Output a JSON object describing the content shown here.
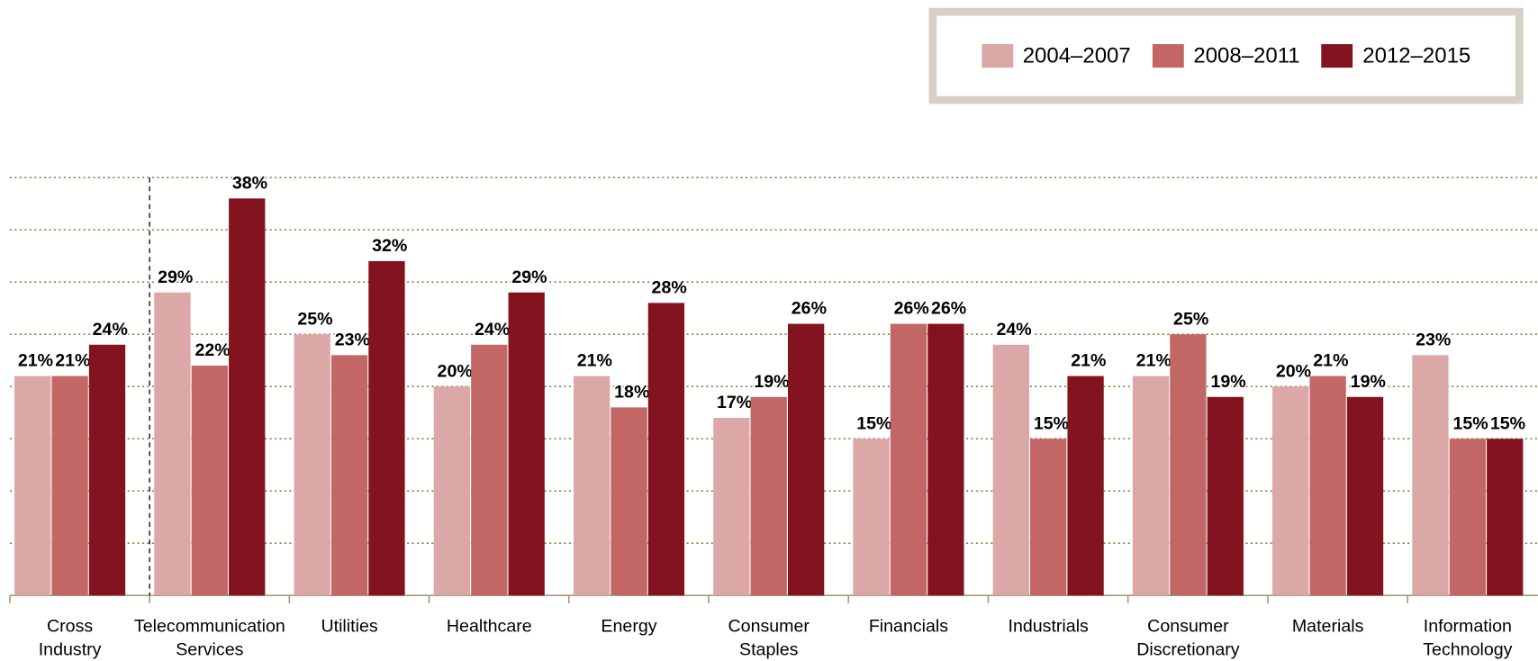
{
  "chart_data": {
    "type": "bar",
    "categories": [
      "Cross Industry",
      "Telecommunication Services",
      "Utilities",
      "Healthcare",
      "Energy",
      "Consumer Staples",
      "Financials",
      "Industrials",
      "Consumer Discretionary",
      "Materials",
      "Information Technology"
    ],
    "series": [
      {
        "name": "2004–2007",
        "color": "#dba7a7",
        "values": [
          21,
          29,
          25,
          20,
          21,
          17,
          15,
          24,
          21,
          20,
          23
        ],
        "value_labels": [
          "21%",
          "29%",
          "25%",
          "20%",
          "21%",
          "17%",
          "15%",
          "24%",
          "21%",
          "20%",
          "23%"
        ]
      },
      {
        "name": "2008–2011",
        "color": "#c26765",
        "values": [
          21,
          22,
          23,
          24,
          18,
          19,
          26,
          15,
          25,
          21,
          15
        ],
        "value_labels": [
          "21%",
          "22%",
          "23%",
          "24%",
          "18%",
          "19%",
          "26%",
          "15%",
          "25%",
          "21%",
          "15%"
        ]
      },
      {
        "name": "2012–2015",
        "color": "#83141f",
        "values": [
          24,
          38,
          32,
          29,
          28,
          26,
          26,
          21,
          19,
          19,
          15
        ],
        "value_labels": [
          "24%",
          "38%",
          "32%",
          "29%",
          "28%",
          "26%",
          "26%",
          "21%",
          "19%",
          "19%",
          "15%"
        ]
      }
    ],
    "ylim": [
      0,
      40
    ],
    "yticks": [
      0,
      5,
      10,
      15,
      20,
      25,
      30,
      35,
      40
    ],
    "grid": true,
    "legend": "top-right"
  }
}
